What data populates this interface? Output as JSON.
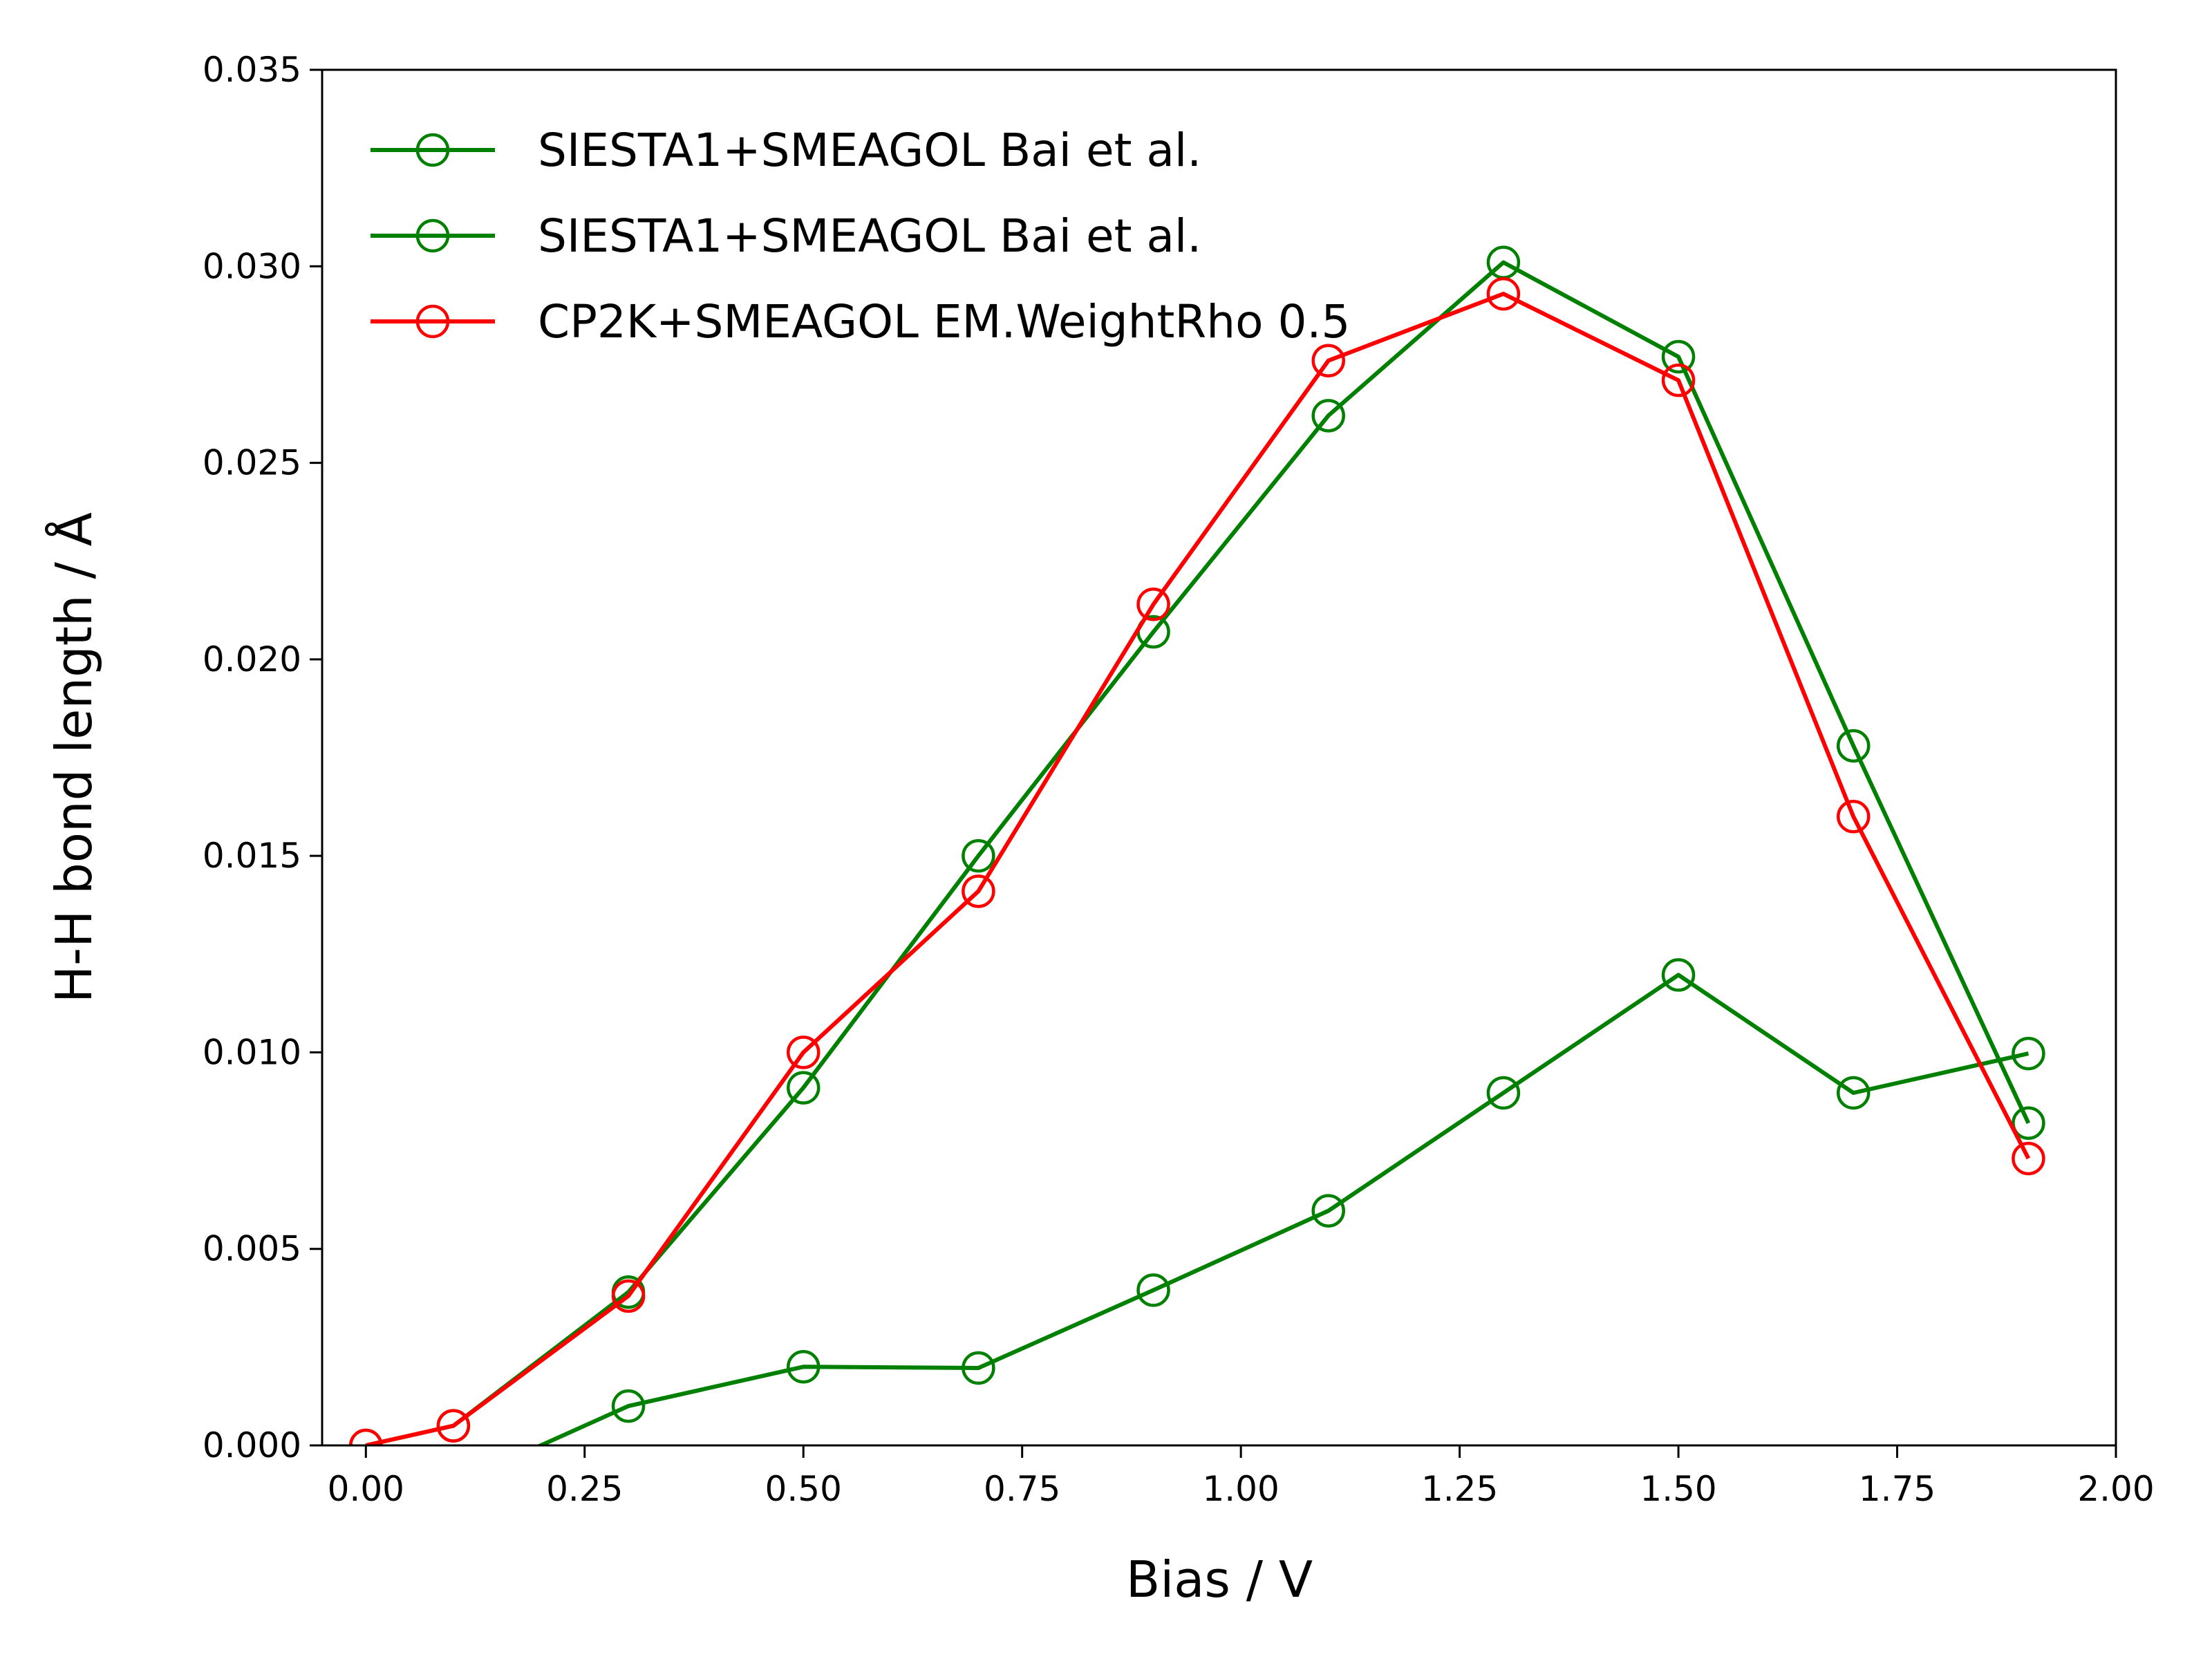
{
  "chart_data": {
    "type": "line",
    "title": "",
    "xlabel": "Bias / V",
    "ylabel": "H-H bond length / Å",
    "xlim": [
      -0.05,
      2.0
    ],
    "ylim": [
      0.0,
      0.035
    ],
    "xticks": [
      "0.00",
      "0.25",
      "0.50",
      "0.75",
      "1.00",
      "1.25",
      "1.50",
      "1.75",
      "2.00"
    ],
    "yticks": [
      "0.000",
      "0.005",
      "0.010",
      "0.015",
      "0.020",
      "0.025",
      "0.030",
      "0.035"
    ],
    "grid": false,
    "legend_position": "top-left",
    "marker": "open-circle",
    "series": [
      {
        "name": "SIESTA1+SMEAGOL Bai et al.",
        "color": "#008000",
        "x": [
          -0.1,
          0.3,
          0.5,
          0.7,
          0.9,
          1.1,
          1.3,
          1.5,
          1.7,
          1.9
        ],
        "y": [
          -0.003,
          0.001,
          0.002,
          0.00197,
          0.00395,
          0.00597,
          0.00897,
          0.01197,
          0.00897,
          0.00997
        ]
      },
      {
        "name": "SIESTA1+SMEAGOL Bai et al.",
        "color": "#008000",
        "x": [
          0.0,
          0.1,
          0.3,
          0.5,
          0.7,
          0.9,
          1.1,
          1.3,
          1.5,
          1.7,
          1.9
        ],
        "y": [
          0.0,
          0.0005,
          0.0039,
          0.0091,
          0.015,
          0.0207,
          0.0262,
          0.0301,
          0.0277,
          0.0178,
          0.0082
        ]
      },
      {
        "name": "CP2K+SMEAGOL EM.WeightRho 0.5",
        "color": "#ff0000",
        "x": [
          0.0,
          0.1,
          0.3,
          0.5,
          0.7,
          0.9,
          1.1,
          1.3,
          1.5,
          1.7,
          1.9
        ],
        "y": [
          0.0,
          0.0005,
          0.0038,
          0.01,
          0.0141,
          0.0214,
          0.0276,
          0.0293,
          0.0271,
          0.016,
          0.0073
        ]
      }
    ]
  }
}
